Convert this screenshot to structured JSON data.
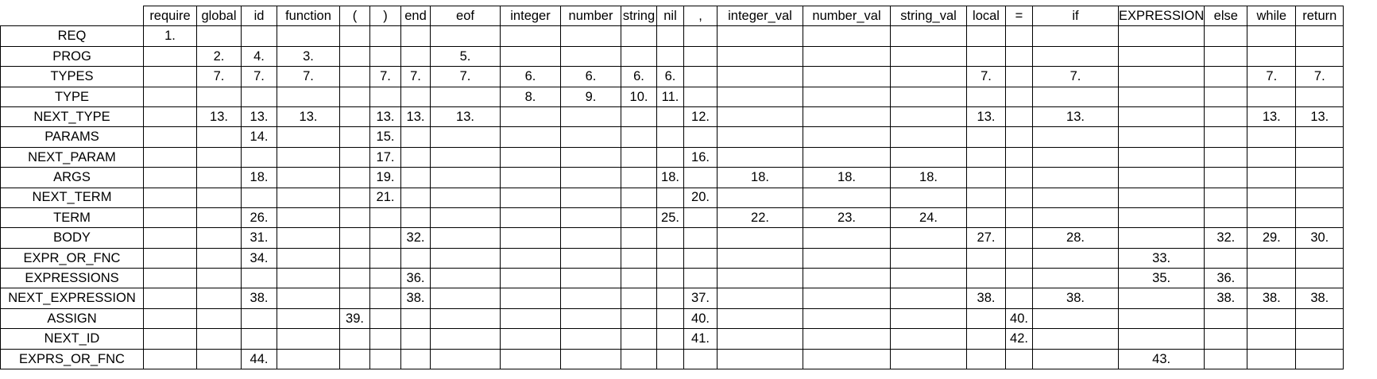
{
  "table": {
    "columns": [
      "require",
      "global",
      "id",
      "function",
      "(",
      ")",
      "end",
      "eof",
      "integer",
      "number",
      "string",
      "nil",
      ",",
      "integer_val",
      "number_val",
      "string_val",
      "local",
      "=",
      "if",
      "EXPRESSION",
      "else",
      "while",
      "return"
    ],
    "rows": [
      {
        "label": "REQ",
        "cells": [
          "1.",
          "",
          "",
          "",
          "",
          "",
          "",
          "",
          "",
          "",
          "",
          "",
          "",
          "",
          "",
          "",
          "",
          "",
          "",
          "",
          "",
          "",
          ""
        ]
      },
      {
        "label": "PROG",
        "cells": [
          "",
          "2.",
          "4.",
          "3.",
          "",
          "",
          "",
          "5.",
          "",
          "",
          "",
          "",
          "",
          "",
          "",
          "",
          "",
          "",
          "",
          "",
          "",
          "",
          ""
        ]
      },
      {
        "label": "TYPES",
        "cells": [
          "",
          "7.",
          "7.",
          "7.",
          "",
          "7.",
          "7.",
          "7.",
          "6.",
          "6.",
          "6.",
          "6.",
          "",
          "",
          "",
          "",
          "7.",
          "",
          "7.",
          "",
          "",
          "7.",
          "7."
        ]
      },
      {
        "label": "TYPE",
        "cells": [
          "",
          "",
          "",
          "",
          "",
          "",
          "",
          "",
          "8.",
          "9.",
          "10.",
          "11.",
          "",
          "",
          "",
          "",
          "",
          "",
          "",
          "",
          "",
          "",
          ""
        ]
      },
      {
        "label": "NEXT_TYPE",
        "cells": [
          "",
          "13.",
          "13.",
          "13.",
          "",
          "13.",
          "13.",
          "13.",
          "",
          "",
          "",
          "",
          "12.",
          "",
          "",
          "",
          "13.",
          "",
          "13.",
          "",
          "",
          "13.",
          "13."
        ]
      },
      {
        "label": "PARAMS",
        "cells": [
          "",
          "",
          "14.",
          "",
          "",
          "15.",
          "",
          "",
          "",
          "",
          "",
          "",
          "",
          "",
          "",
          "",
          "",
          "",
          "",
          "",
          "",
          "",
          ""
        ]
      },
      {
        "label": "NEXT_PARAM",
        "cells": [
          "",
          "",
          "",
          "",
          "",
          "17.",
          "",
          "",
          "",
          "",
          "",
          "",
          "16.",
          "",
          "",
          "",
          "",
          "",
          "",
          "",
          "",
          "",
          ""
        ]
      },
      {
        "label": "ARGS",
        "cells": [
          "",
          "",
          "18.",
          "",
          "",
          "19.",
          "",
          "",
          "",
          "",
          "",
          "18.",
          "",
          "18.",
          "18.",
          "18.",
          "",
          "",
          "",
          "",
          "",
          "",
          ""
        ]
      },
      {
        "label": "NEXT_TERM",
        "cells": [
          "",
          "",
          "",
          "",
          "",
          "21.",
          "",
          "",
          "",
          "",
          "",
          "",
          "20.",
          "",
          "",
          "",
          "",
          "",
          "",
          "",
          "",
          "",
          ""
        ]
      },
      {
        "label": "TERM",
        "cells": [
          "",
          "",
          "26.",
          "",
          "",
          "",
          "",
          "",
          "",
          "",
          "",
          "25.",
          "",
          "22.",
          "23.",
          "24.",
          "",
          "",
          "",
          "",
          "",
          "",
          ""
        ]
      },
      {
        "label": "BODY",
        "cells": [
          "",
          "",
          "31.",
          "",
          "",
          "",
          "32.",
          "",
          "",
          "",
          "",
          "",
          "",
          "",
          "",
          "",
          "27.",
          "",
          "28.",
          "",
          "32.",
          "29.",
          "30."
        ]
      },
      {
        "label": "EXPR_OR_FNC",
        "cells": [
          "",
          "",
          "34.",
          "",
          "",
          "",
          "",
          "",
          "",
          "",
          "",
          "",
          "",
          "",
          "",
          "",
          "",
          "",
          "",
          "33.",
          "",
          "",
          ""
        ]
      },
      {
        "label": "EXPRESSIONS",
        "cells": [
          "",
          "",
          "",
          "",
          "",
          "",
          "36.",
          "",
          "",
          "",
          "",
          "",
          "",
          "",
          "",
          "",
          "",
          "",
          "",
          "35.",
          "36.",
          "",
          ""
        ]
      },
      {
        "label": "NEXT_EXPRESSION",
        "cells": [
          "",
          "",
          "38.",
          "",
          "",
          "",
          "38.",
          "",
          "",
          "",
          "",
          "",
          "37.",
          "",
          "",
          "",
          "38.",
          "",
          "38.",
          "",
          "38.",
          "38.",
          "38."
        ]
      },
      {
        "label": "ASSIGN",
        "cells": [
          "",
          "",
          "",
          "",
          "39.",
          "",
          "",
          "",
          "",
          "",
          "",
          "",
          "40.",
          "",
          "",
          "",
          "",
          "40.",
          "",
          "",
          "",
          "",
          ""
        ]
      },
      {
        "label": "NEXT_ID",
        "cells": [
          "",
          "",
          "",
          "",
          "",
          "",
          "",
          "",
          "",
          "",
          "",
          "",
          "41.",
          "",
          "",
          "",
          "",
          "42.",
          "",
          "",
          "",
          "",
          ""
        ]
      },
      {
        "label": "EXPRS_OR_FNC",
        "cells": [
          "",
          "",
          "44.",
          "",
          "",
          "",
          "",
          "",
          "",
          "",
          "",
          "",
          "",
          "",
          "",
          "",
          "",
          "",
          "",
          "43.",
          "",
          "",
          ""
        ]
      }
    ]
  }
}
